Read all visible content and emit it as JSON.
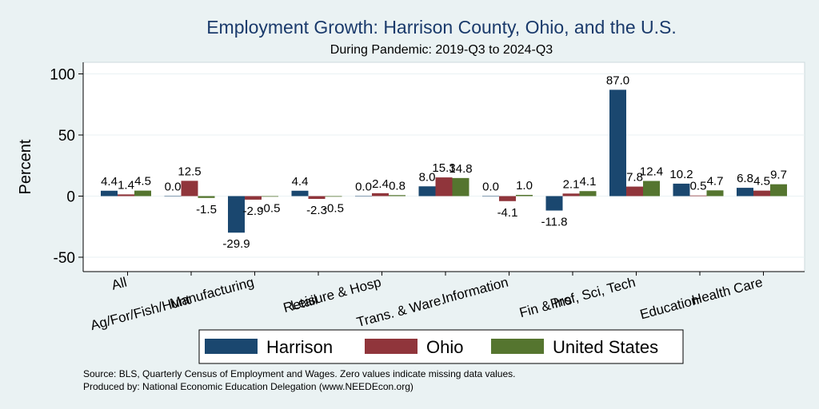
{
  "chart_data": {
    "type": "bar",
    "title": "Employment Growth: Harrison County, Ohio, and the U.S.",
    "subtitle": "During Pandemic: 2019-Q3 to 2024-Q3",
    "ylabel": "Percent",
    "xlabel": "",
    "ylim": [
      -60,
      110
    ],
    "yticks": [
      -50,
      0,
      50,
      100
    ],
    "grid": true,
    "categories": [
      "All",
      "Ag/For/Fish/Hunt",
      "Manufacturing",
      "Retail",
      "Leisure & Hosp",
      "Trans. & Ware.",
      "Information",
      "Fin & Ins",
      "Prof, Sci, Tech",
      "Education",
      "Health Care"
    ],
    "series": [
      {
        "name": "Harrison",
        "color": "#1a476f",
        "values": [
          4.4,
          0.0,
          -29.9,
          4.4,
          0.0,
          8.0,
          0.0,
          -11.8,
          87.0,
          10.2,
          6.8
        ],
        "labels": [
          "4.4",
          "0.0",
          "-29.9",
          "4.4",
          "0.0",
          "8.0",
          "0.0",
          "-11.8",
          "87.0",
          "10.2",
          "6.8"
        ]
      },
      {
        "name": "Ohio",
        "color": "#90353b",
        "values": [
          1.4,
          12.5,
          -2.9,
          -2.3,
          2.4,
          15.3,
          -4.1,
          2.1,
          7.8,
          0.5,
          4.5
        ],
        "labels": [
          "1.4",
          "12.5",
          "-2.9",
          "-2.3",
          "2.4",
          "15.3",
          "-4.1",
          "2.1",
          "7.8",
          "0.5",
          "4.5"
        ]
      },
      {
        "name": "United States",
        "color": "#55752f",
        "values": [
          4.5,
          -1.5,
          -0.5,
          -0.5,
          0.8,
          14.8,
          1.0,
          4.1,
          12.4,
          4.7,
          9.7
        ],
        "labels": [
          "4.5",
          "-1.5",
          "-0.5",
          "-0.5",
          "0.8",
          "14.8",
          "1.0",
          "4.1",
          "12.4",
          "4.7",
          "9.7"
        ]
      }
    ],
    "legend": "bottom",
    "colors": {
      "background": "#eaf2f3",
      "plot": "#ffffff",
      "title": "#1a3a6b",
      "grid": "#eaf2f3"
    }
  },
  "footer": {
    "source": "Source: BLS, Quarterly Census of Employment and Wages. Zero values indicate missing data values.",
    "produced": "Produced by: National Economic Education Delegation (www.NEEDEcon.org)"
  }
}
